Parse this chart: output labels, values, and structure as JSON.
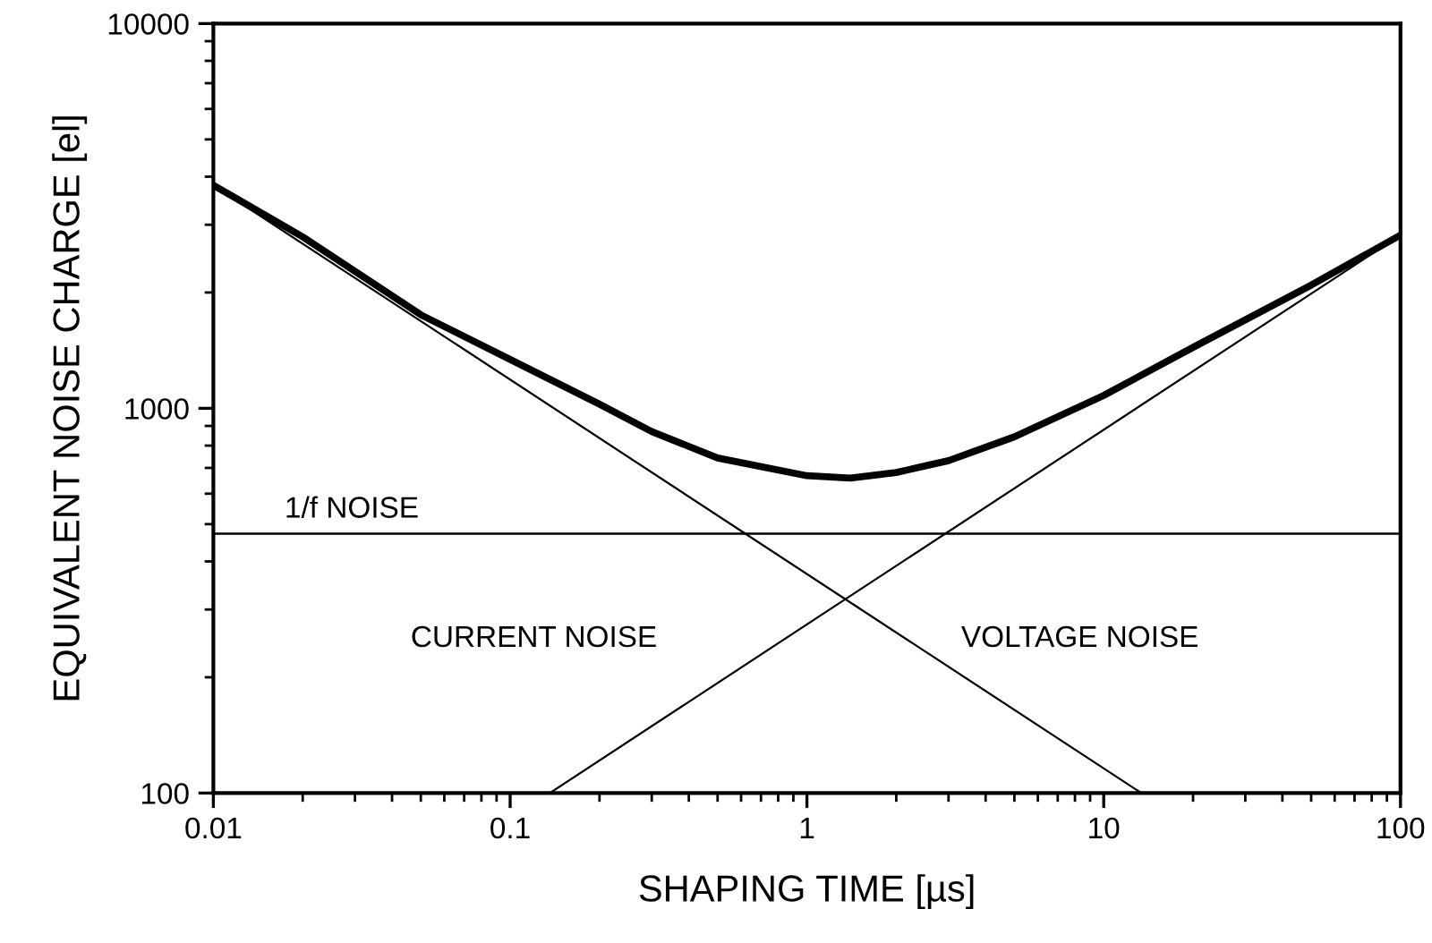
{
  "chart_data": {
    "type": "line",
    "xlabel": "SHAPING TIME [µs]",
    "ylabel": "EQUIVALENT NOISE CHARGE [el]",
    "log": "xy",
    "xlim": [
      0.01,
      100
    ],
    "xticks": [
      0.01,
      0.1,
      1,
      10,
      100
    ],
    "ylim": [
      100,
      10000
    ],
    "yticks": [
      100,
      1000,
      10000
    ],
    "grid": false,
    "marker": "none",
    "line_style": "solid",
    "series": [
      {
        "color": "#000000",
        "x": [
          0.01,
          0.02,
          0.05,
          0.1,
          0.2,
          0.3,
          0.5,
          1,
          1.4,
          2,
          3,
          5,
          10,
          20,
          50,
          100
        ],
        "values": [
          3800,
          2790,
          1750,
          1340,
          1025,
          870,
          743,
          668,
          659,
          681,
          731,
          843,
          1080,
          1440,
          2090,
          2820
        ]
      },
      {
        "color": "#000000",
        "x": [
          0.01,
          13.4
        ],
        "values": [
          3800,
          100
        ]
      },
      {
        "color": "#000000",
        "x": [
          0.136,
          100
        ],
        "values": [
          100,
          2820
        ]
      }
    ],
    "ref_lines": [
      {
        "axis": "y",
        "value": 472,
        "label": "1/f NOISE",
        "color": "#000000"
      }
    ],
    "annotations": [
      "CURRENT NOISE",
      "VOLTAGE NOISE"
    ]
  }
}
